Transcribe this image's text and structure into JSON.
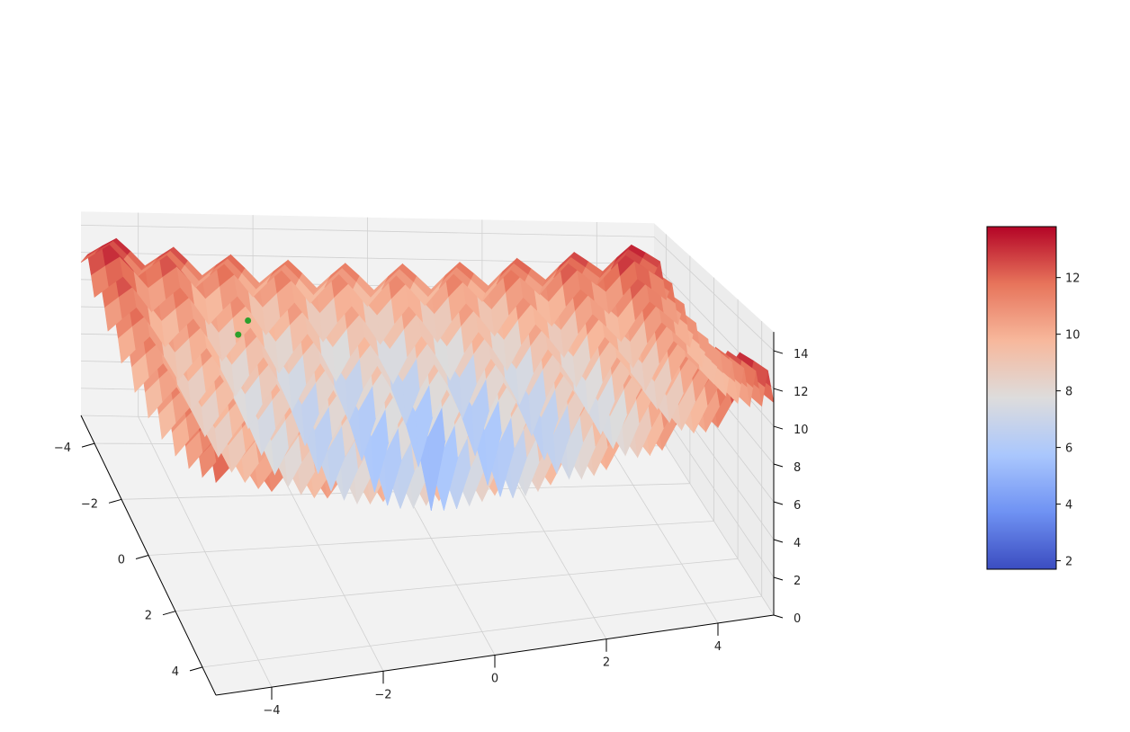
{
  "chart_data": {
    "type": "surface3d",
    "title": "",
    "colormap": "coolwarm",
    "colormap_stops": [
      "#3b4cc0",
      "#6f92f3",
      "#aac7fd",
      "#dddcdc",
      "#f7b89c",
      "#e7745b",
      "#b40426"
    ],
    "pane_color": "#f2f2f2",
    "grid": true,
    "x_axis": {
      "label": "",
      "range": [
        -5,
        5
      ],
      "ticks": [
        -4,
        -2,
        0,
        2,
        4
      ],
      "tick_labels": [
        "−4",
        "−2",
        "0",
        "2",
        "4"
      ]
    },
    "y_axis": {
      "label": "",
      "range": [
        -5,
        5
      ],
      "ticks": [
        -4,
        -2,
        0,
        2,
        4
      ],
      "tick_labels": [
        "−4",
        "−2",
        "0",
        "2",
        "4"
      ]
    },
    "z_axis": {
      "label": "",
      "range": [
        0,
        15
      ],
      "ticks": [
        0,
        2,
        4,
        6,
        8,
        10,
        12,
        14
      ],
      "tick_labels": [
        "0",
        "2",
        "4",
        "6",
        "8",
        "10",
        "12",
        "14"
      ]
    },
    "surface": {
      "description_values": "z = 20 + x^2 + y^2 - 10(cos 2πx + cos 2πy) scaled; min ≈ 1.7 near center, max ≈ 13.8 at corners",
      "z_min": 1.7,
      "z_max": 13.8
    },
    "markers": [
      {
        "x": -4.5,
        "y": -2.2,
        "z": 8.0,
        "color": "#2ca02c"
      },
      {
        "x": -3.5,
        "y": -2.6,
        "z": 8.5,
        "color": "#2ca02c"
      }
    ],
    "colorbar": {
      "range": [
        1.7,
        13.8
      ],
      "ticks": [
        2,
        4,
        6,
        8,
        10,
        12
      ],
      "tick_labels": [
        "2",
        "4",
        "6",
        "8",
        "10",
        "12"
      ],
      "placement": "right"
    }
  }
}
